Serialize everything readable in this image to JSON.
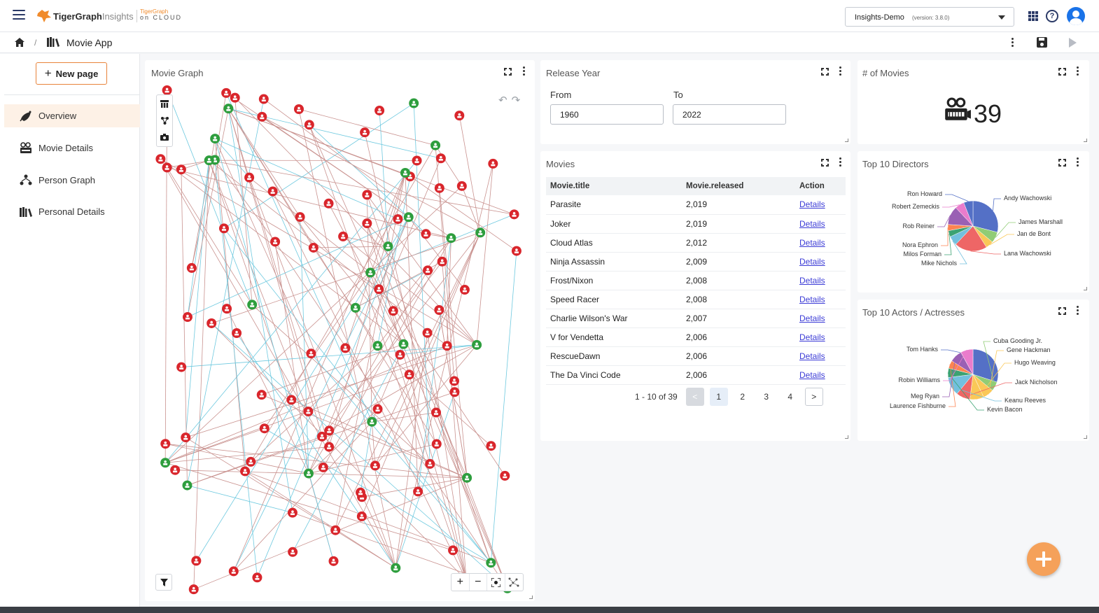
{
  "header": {
    "brand_name": "TigerGraph",
    "brand_product": "Insights",
    "cloud_tag_top": "TigerGraph",
    "cloud_tag_bottom": "on CLOUD",
    "workspace": {
      "name": "Insights-Demo",
      "version": "(version: 3.8.0)"
    }
  },
  "breadcrumb": {
    "separator": "/",
    "app_title": "Movie App"
  },
  "sidebar": {
    "new_page_label": "New page",
    "items": [
      {
        "label": "Overview",
        "icon": "rocket-icon",
        "active": true
      },
      {
        "label": "Movie Details",
        "icon": "movie-camera-icon",
        "active": false
      },
      {
        "label": "Person Graph",
        "icon": "people-network-icon",
        "active": false
      },
      {
        "label": "Personal Details",
        "icon": "bookshelf-icon",
        "active": false
      }
    ]
  },
  "graph_panel": {
    "title": "Movie Graph",
    "legend_colors": {
      "movie_node": "#2e9e3e",
      "person_node": "#d9262c",
      "edge_directed": "#c9928f",
      "edge_acted": "#6ec9df"
    }
  },
  "release_year": {
    "title": "Release Year",
    "from_label": "From",
    "to_label": "To",
    "from_value": "1960",
    "to_value": "2022"
  },
  "movie_count": {
    "title": "# of Movies",
    "value": "39"
  },
  "movies": {
    "title": "Movies",
    "columns": [
      "Movie.title",
      "Movie.released",
      "Action"
    ],
    "rows": [
      {
        "title": "Parasite",
        "released": "2,019",
        "action": "Details"
      },
      {
        "title": "Joker",
        "released": "2,019",
        "action": "Details"
      },
      {
        "title": "Cloud Atlas",
        "released": "2,012",
        "action": "Details"
      },
      {
        "title": "Ninja Assassin",
        "released": "2,009",
        "action": "Details"
      },
      {
        "title": "Frost/Nixon",
        "released": "2,008",
        "action": "Details"
      },
      {
        "title": "Speed Racer",
        "released": "2,008",
        "action": "Details"
      },
      {
        "title": "Charlie Wilson's War",
        "released": "2,007",
        "action": "Details"
      },
      {
        "title": "V for Vendetta",
        "released": "2,006",
        "action": "Details"
      },
      {
        "title": "RescueDawn",
        "released": "2,006",
        "action": "Details"
      },
      {
        "title": "The Da Vinci Code",
        "released": "2,006",
        "action": "Details"
      }
    ],
    "pagination": {
      "range": "1 - 10 of 39",
      "prev": "<",
      "pages": [
        "1",
        "2",
        "3",
        "4"
      ],
      "next": ">"
    }
  },
  "directors": {
    "title": "Top 10 Directors",
    "chart_data": {
      "type": "pie",
      "series": [
        {
          "name": "Andy Wachowski",
          "value": 29,
          "color": "#5470c6"
        },
        {
          "name": "James Marshall",
          "value": 7,
          "color": "#91cc75"
        },
        {
          "name": "Jan de Bont",
          "value": 5,
          "color": "#fac858"
        },
        {
          "name": "Lana Wachowski",
          "value": 21,
          "color": "#ee6666"
        },
        {
          "name": "Mike Nichols",
          "value": 6,
          "color": "#73c0de"
        },
        {
          "name": "Milos Forman",
          "value": 4,
          "color": "#3ba272"
        },
        {
          "name": "Nora Ephron",
          "value": 4,
          "color": "#fc8452"
        },
        {
          "name": "Rob Reiner",
          "value": 12,
          "color": "#9a60b4"
        },
        {
          "name": "Robert Zemeckis",
          "value": 6,
          "color": "#ea7ccc"
        },
        {
          "name": "Ron Howard",
          "value": 6,
          "color": "#5470c6"
        }
      ]
    }
  },
  "actors": {
    "title": "Top 10 Actors / Actresses",
    "chart_data": {
      "type": "pie",
      "series": [
        {
          "name": "Tom Hanks",
          "value": 30,
          "color": "#5470c6"
        },
        {
          "name": "Cuba Gooding Jr.",
          "value": 6,
          "color": "#91cc75"
        },
        {
          "name": "Gene Hackman",
          "value": 7,
          "color": "#fac858"
        },
        {
          "name": "Hugo Weaving",
          "value": 9,
          "color": "#fac858"
        },
        {
          "name": "Jack Nicholson",
          "value": 9,
          "color": "#ee6666"
        },
        {
          "name": "Keanu Reeves",
          "value": 12,
          "color": "#73c0de"
        },
        {
          "name": "Kevin Bacon",
          "value": 6,
          "color": "#3ba272"
        },
        {
          "name": "Laurence Fishburne",
          "value": 5,
          "color": "#fc8452"
        },
        {
          "name": "Meg Ryan",
          "value": 8,
          "color": "#9a60b4"
        },
        {
          "name": "Robin Williams",
          "value": 8,
          "color": "#ea7ccc"
        }
      ]
    }
  }
}
